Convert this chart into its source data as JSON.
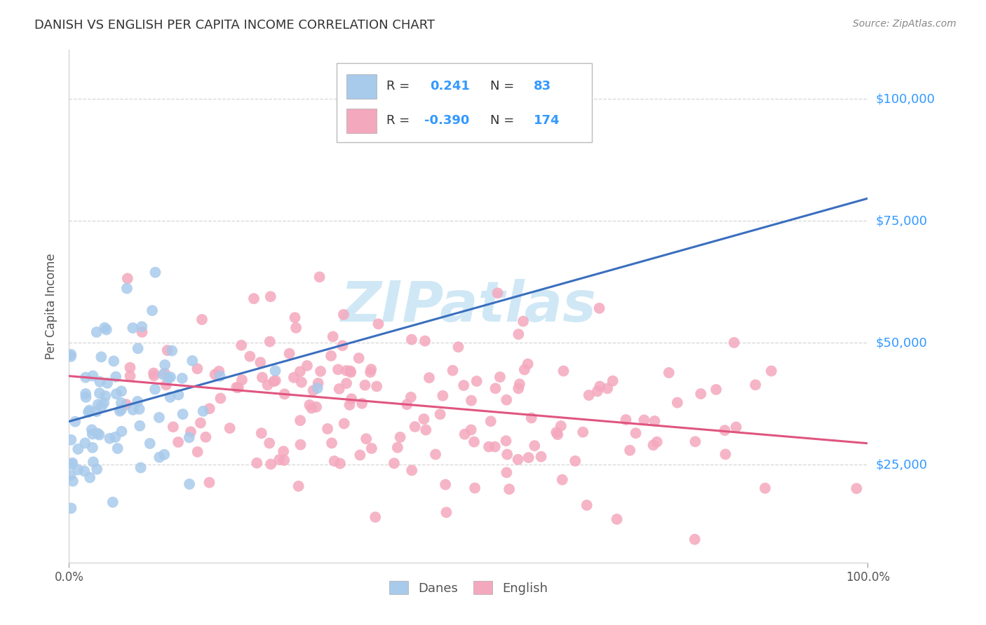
{
  "title": "DANISH VS ENGLISH PER CAPITA INCOME CORRELATION CHART",
  "source": "Source: ZipAtlas.com",
  "ylabel": "Per Capita Income",
  "y_ticks": [
    25000,
    50000,
    75000,
    100000
  ],
  "y_tick_labels": [
    "$25,000",
    "$50,000",
    "$75,000",
    "$100,000"
  ],
  "ylim": [
    5000,
    110000
  ],
  "xlim": [
    0.0,
    1.0
  ],
  "danes_R": 0.241,
  "danes_N": 83,
  "english_R": -0.39,
  "english_N": 174,
  "blue_scatter_color": "#a8caeb",
  "blue_line_color": "#3a6fbe",
  "pink_scatter_color": "#f4a8be",
  "pink_line_color": "#e05580",
  "watermark_text": "ZIPatlas",
  "watermark_color": "#d0e8f5",
  "background_color": "#ffffff",
  "grid_color": "#cccccc",
  "title_color": "#333333",
  "legend_label_color": "#333333",
  "legend_value_color": "#3399ff",
  "right_axis_color": "#3399ff"
}
